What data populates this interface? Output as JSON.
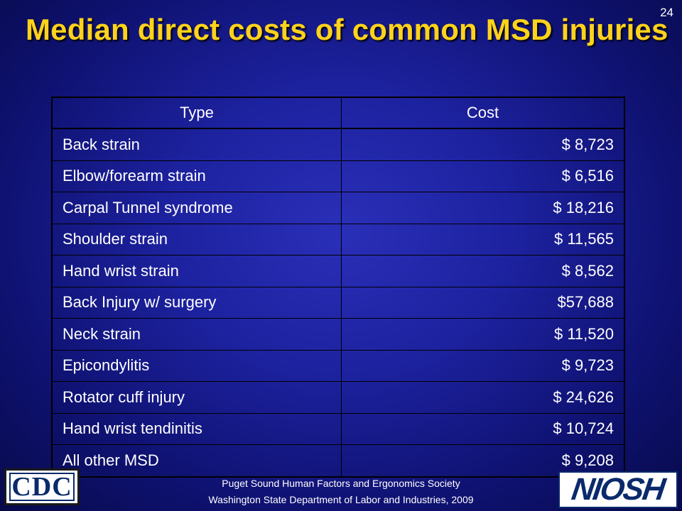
{
  "slide_number": "24",
  "title": "Median direct costs of common MSD injuries",
  "table": {
    "headers": [
      "Type",
      "Cost"
    ],
    "rows": [
      {
        "type": "Back strain",
        "cost": "$ 8,723"
      },
      {
        "type": "Elbow/forearm strain",
        "cost": "$ 6,516"
      },
      {
        "type": "Carpal Tunnel syndrome",
        "cost": "$ 18,216"
      },
      {
        "type": "Shoulder strain",
        "cost": "$ 11,565"
      },
      {
        "type": "Hand wrist strain",
        "cost": "$ 8,562"
      },
      {
        "type": "Back Injury w/ surgery",
        "cost": "$57,688"
      },
      {
        "type": "Neck strain",
        "cost": "$ 11,520"
      },
      {
        "type": "Epicondylitis",
        "cost": "$ 9,723"
      },
      {
        "type": "Rotator cuff injury",
        "cost": "$ 24,626"
      },
      {
        "type": "Hand wrist tendinitis",
        "cost": "$ 10,724"
      },
      {
        "type": "All other MSD",
        "cost": "$ 9,208"
      }
    ]
  },
  "footer": {
    "line1": "Puget Sound Human Factors and Ergonomics Society",
    "line2": "Washington State Department of Labor and Industries, 2009"
  },
  "logos": {
    "left": "CDC",
    "right": "NIOSH"
  },
  "colors": {
    "title": "#ffd21c",
    "background": "#1d22a0",
    "text": "#ffffff"
  }
}
